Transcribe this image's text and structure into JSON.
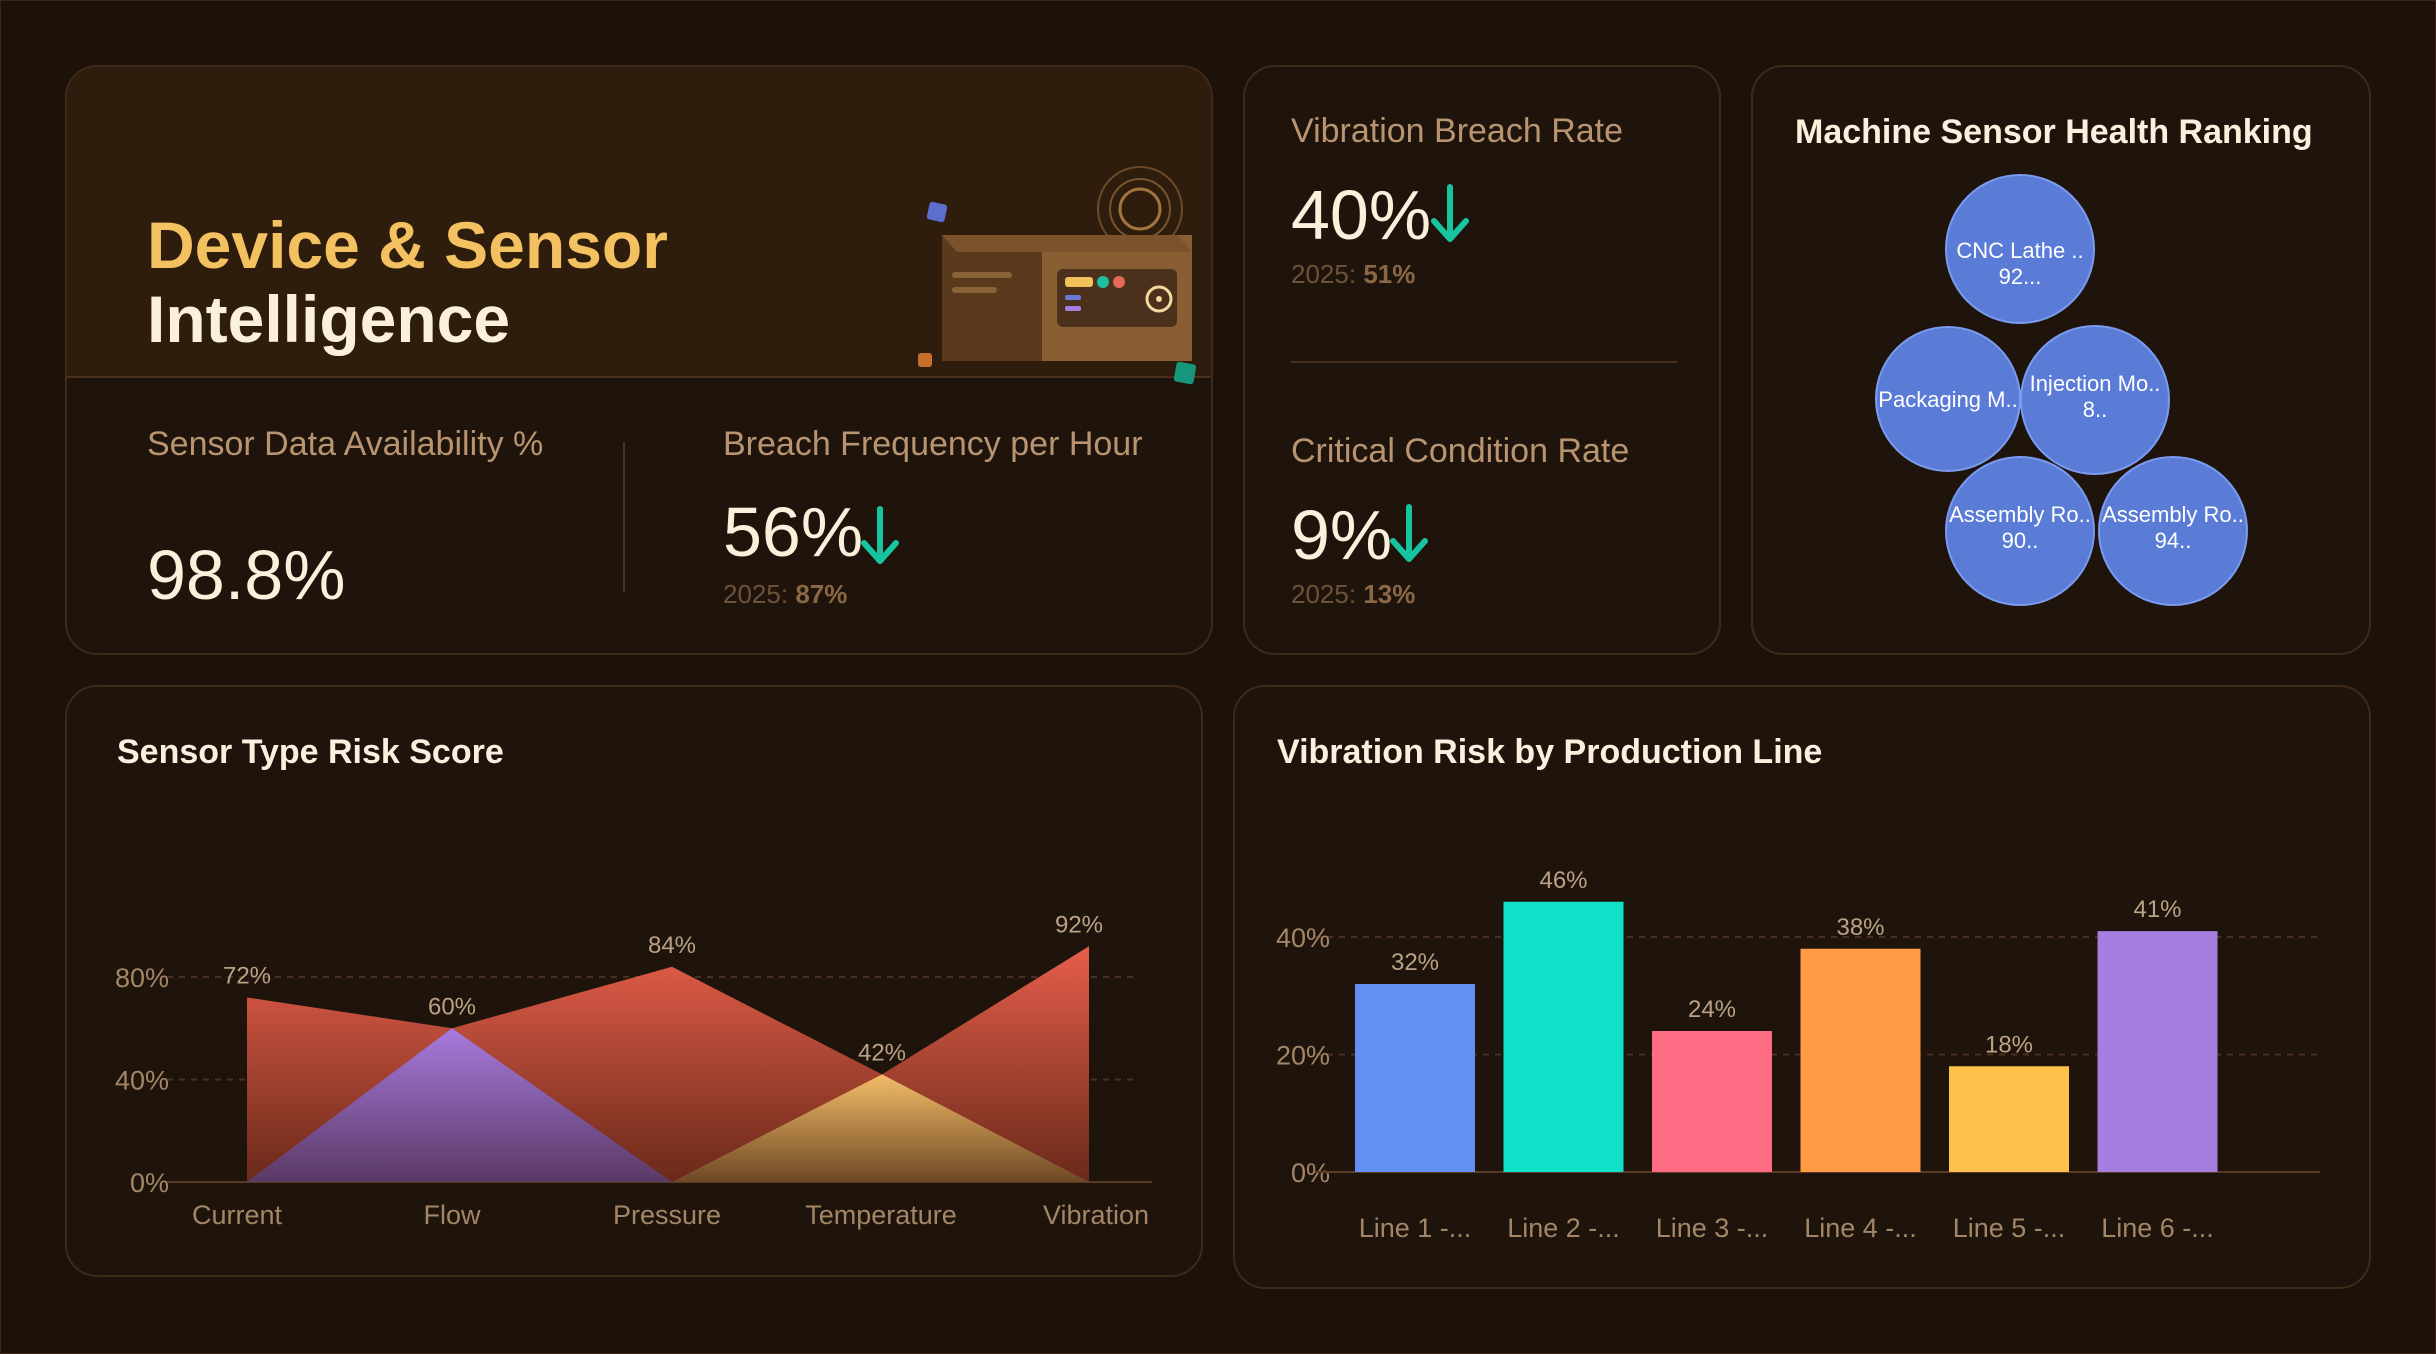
{
  "hero": {
    "title_line1": "Device & Sensor",
    "title_line2": "Intelligence",
    "availability": {
      "label": "Sensor Data Availability %",
      "value": "98.8%"
    },
    "breach_freq": {
      "label": "Breach Frequency per Hour",
      "value": "56%",
      "prev_label": "2025:",
      "prev_value": "87%"
    }
  },
  "vibration_breach": {
    "label": "Vibration Breach Rate",
    "value": "40%",
    "prev_label": "2025:",
    "prev_value": "51%"
  },
  "critical": {
    "label": "Critical Condition Rate",
    "value": "9%",
    "prev_label": "2025:",
    "prev_value": "13%"
  },
  "ranking": {
    "title": "Machine Sensor Health Ranking",
    "bubbles": [
      {
        "name": "CNC Lathe ..",
        "value": "92..."
      },
      {
        "name": "Packaging M..",
        "value": ""
      },
      {
        "name": "Injection Mo..",
        "value": "8.."
      },
      {
        "name": "Assembly Ro..",
        "value": "90.."
      },
      {
        "name": "Assembly Ro..",
        "value": "94.."
      }
    ]
  },
  "colors": {
    "trend_down": "#16c4a0",
    "accent": "#f4c160",
    "bubble": "#5a7bd6"
  },
  "chart_data": [
    {
      "type": "area",
      "title": "Sensor Type Risk Score",
      "categories": [
        "Current",
        "Flow",
        "Pressure",
        "Temperature",
        "Vibration"
      ],
      "series": [
        {
          "values": [
            72,
            60,
            84,
            42,
            92
          ]
        },
        {
          "values": [
            0,
            60,
            0,
            0,
            0
          ]
        },
        {
          "values": [
            0,
            0,
            0,
            42,
            0
          ]
        }
      ],
      "data_labels": [
        "72%",
        "60%",
        "84%",
        "42%",
        "92%"
      ],
      "y_ticks": [
        "0%",
        "40%",
        "80%"
      ],
      "ylim": [
        0,
        100
      ],
      "grid": true
    },
    {
      "type": "bar",
      "title": "Vibration Risk by Production Line",
      "categories": [
        "Line 1 -...",
        "Line 2 -...",
        "Line 3 -...",
        "Line 4 -...",
        "Line 5 -...",
        "Line 6 -..."
      ],
      "values": [
        32,
        46,
        24,
        38,
        18,
        41
      ],
      "data_labels": [
        "32%",
        "46%",
        "24%",
        "38%",
        "18%",
        "41%"
      ],
      "bar_colors": [
        "#6390f5",
        "#0fe0c8",
        "#ff6b82",
        "#ff9a45",
        "#fdc04a",
        "#a57ee0"
      ],
      "y_ticks": [
        "0%",
        "20%",
        "40%"
      ],
      "ylim": [
        0,
        50
      ],
      "grid": true
    }
  ]
}
